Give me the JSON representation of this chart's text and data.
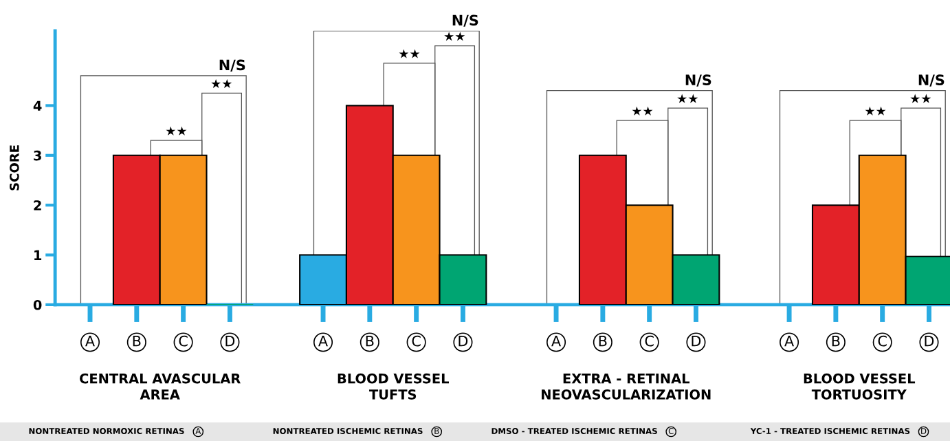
{
  "chart_data": {
    "type": "bar",
    "ylabel": "SCORE",
    "categories": [
      "A",
      "B",
      "C",
      "D",
      null,
      "A",
      "B",
      "C",
      "D",
      null,
      "A",
      "B",
      "C",
      "D",
      null,
      "A",
      "B",
      "C",
      "D"
    ],
    "values": [
      0,
      3,
      3,
      0,
      null,
      1,
      4,
      3,
      1,
      null,
      0,
      3,
      2,
      1,
      null,
      0,
      2,
      3,
      0.97
    ],
    "colors": [
      "#29abe2",
      "#e32228",
      "#f7941d",
      "#00a572",
      null,
      "#29abe2",
      "#e32228",
      "#f7941d",
      "#00a572",
      null,
      "#29abe2",
      "#e32228",
      "#f7941d",
      "#00a572",
      null,
      "#29abe2",
      "#e32228",
      "#f7941d",
      "#00a572"
    ],
    "ylim": [
      0,
      5.5
    ],
    "yticks": [
      0,
      1,
      2,
      3,
      4
    ],
    "grid": false,
    "legend": false,
    "annotations": [
      "CENTRAL AVASCULAR\nAREA",
      "BLOOD VESSEL\nTUFTS",
      "EXTRA - RETINAL\nNEOVASCULARIZATION",
      "BLOOD VESSEL\nTORTUOSITY",
      "NONTREATED NORMOXIC RETINAS",
      "NONTREATED ISCHEMIC RETINAS",
      "DMSO - TREATED ISCHEMIC RETINAS",
      "YC-1 - TREATED ISCHEMIC RETINAS",
      "N/S",
      "★★",
      "★★",
      "N/S",
      "★★",
      "★★",
      "N/S",
      "★★",
      "★★",
      "N/S",
      "★★",
      "★★"
    ]
  }
}
